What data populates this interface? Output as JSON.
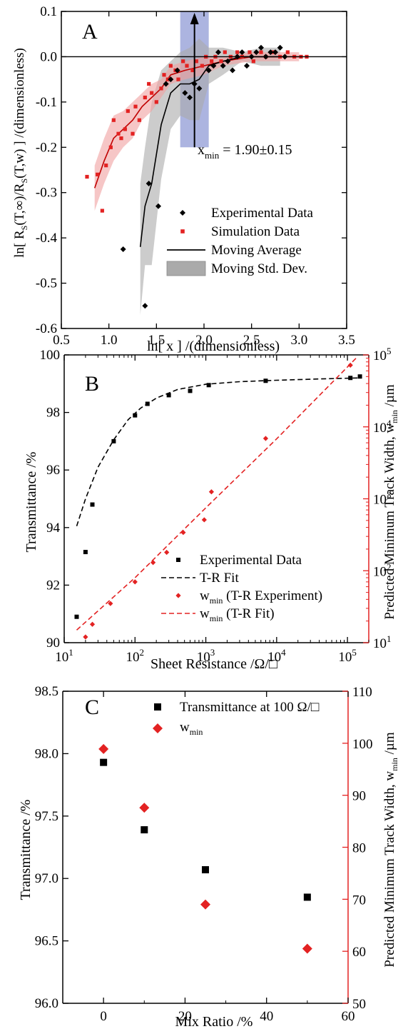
{
  "figure": {
    "panels": [
      "A",
      "B",
      "C"
    ]
  },
  "chart_data": [
    {
      "panel": "A",
      "type": "scatter",
      "xlabel": "ln[ x ] /(dimensionless)",
      "ylabel": "ln[ R_S(T,∞)/R_S(T,w) ] /(dimensionless)",
      "xlim": [
        0.5,
        3.5
      ],
      "ylim": [
        -0.6,
        0.1
      ],
      "xticks": [
        "0.5",
        "1.0",
        "1.5",
        "2.0",
        "2.5",
        "3.0",
        "3.5"
      ],
      "yticks": [
        "-0.6",
        "-0.5",
        "-0.4",
        "-0.3",
        "-0.2",
        "-0.1",
        "0.0",
        "0.1"
      ],
      "annotation": {
        "text": "x_min = 1.90±0.15",
        "xmin_value": 1.9,
        "xmin_uncertainty": 0.15,
        "band_ylim": [
          -0.2,
          0.1
        ]
      },
      "colors": {
        "experimental": "#000000",
        "simulation": "#e32222",
        "band_gray": "#aaaaaa",
        "band_red": "#f0a0a0",
        "xmin_band": "#7f8ccf"
      },
      "legend": [
        "Experimental Data",
        "Simulation Data",
        "Moving Average",
        "Moving Std. Dev."
      ],
      "series": [
        {
          "name": "Experimental Data",
          "marker": "diamond",
          "x": [
            1.15,
            1.38,
            1.42,
            1.52,
            1.6,
            1.65,
            1.72,
            1.8,
            1.85,
            1.9,
            1.95,
            2.05,
            2.1,
            2.15,
            2.2,
            2.25,
            2.3,
            2.35,
            2.4,
            2.45,
            2.5,
            2.55,
            2.6,
            2.65,
            2.7,
            2.75,
            2.8,
            2.85
          ],
          "y": [
            -0.425,
            -0.55,
            -0.28,
            -0.33,
            -0.06,
            -0.05,
            -0.03,
            -0.08,
            -0.09,
            -0.06,
            -0.07,
            -0.03,
            -0.02,
            0.01,
            -0.02,
            -0.01,
            -0.03,
            0.0,
            0.01,
            -0.02,
            0.0,
            0.01,
            0.02,
            0.0,
            0.01,
            0.01,
            0.02,
            0.0
          ]
        },
        {
          "name": "Simulation Data",
          "marker": "square",
          "x": [
            0.77,
            0.88,
            0.93,
            0.97,
            1.02,
            1.05,
            1.1,
            1.13,
            1.17,
            1.2,
            1.25,
            1.28,
            1.32,
            1.38,
            1.42,
            1.45,
            1.5,
            1.55,
            1.58,
            1.62,
            1.65,
            1.7,
            1.73,
            1.78,
            1.82,
            1.88,
            1.92,
            1.98,
            2.02,
            2.08,
            2.12,
            2.18,
            2.22,
            2.28,
            2.35,
            2.4,
            2.48,
            2.52,
            2.6,
            2.65,
            2.72,
            2.8,
            2.88,
            2.95,
            3.02,
            3.08
          ],
          "y": [
            -0.265,
            -0.26,
            -0.34,
            -0.24,
            -0.2,
            -0.14,
            -0.17,
            -0.18,
            -0.16,
            -0.12,
            -0.17,
            -0.11,
            -0.14,
            -0.09,
            -0.06,
            -0.08,
            -0.1,
            -0.07,
            -0.04,
            -0.05,
            -0.02,
            -0.03,
            -0.05,
            -0.01,
            -0.02,
            -0.03,
            -0.01,
            -0.02,
            0.0,
            -0.01,
            0.0,
            -0.01,
            0.01,
            0.0,
            0.01,
            0.0,
            0.01,
            -0.01,
            0.01,
            0.0,
            0.01,
            0.0,
            0.01,
            0.0,
            0.0,
            0.0
          ]
        },
        {
          "name": "Moving Average (Experimental)",
          "line": "solid",
          "color": "#000000",
          "x": [
            1.33,
            1.38,
            1.45,
            1.55,
            1.65,
            1.75,
            1.85,
            1.95,
            2.05,
            2.2,
            2.4,
            2.6,
            2.8
          ],
          "y": [
            -0.42,
            -0.33,
            -0.28,
            -0.15,
            -0.08,
            -0.06,
            -0.06,
            -0.05,
            -0.02,
            -0.01,
            0.0,
            0.0,
            0.0
          ]
        },
        {
          "name": "Moving Average (Simulation)",
          "line": "solid",
          "color": "#c00000",
          "x": [
            0.85,
            0.95,
            1.05,
            1.15,
            1.25,
            1.35,
            1.45,
            1.55,
            1.65,
            1.8,
            2.0,
            2.2,
            2.5,
            2.8,
            3.0
          ],
          "y": [
            -0.29,
            -0.23,
            -0.18,
            -0.16,
            -0.14,
            -0.11,
            -0.09,
            -0.07,
            -0.04,
            -0.03,
            -0.02,
            -0.01,
            0.0,
            0.0,
            0.0
          ]
        },
        {
          "name": "Moving Std. Dev. (Experimental)",
          "band": true,
          "x": [
            1.33,
            1.38,
            1.45,
            1.55,
            1.65,
            1.75,
            1.85,
            1.95,
            2.05,
            2.2,
            2.4,
            2.6,
            2.8
          ],
          "upper": [
            -0.28,
            -0.2,
            -0.1,
            -0.03,
            -0.01,
            0.01,
            0.02,
            0.04,
            0.02,
            0.02,
            0.01,
            0.02,
            0.02
          ],
          "lower": [
            -0.57,
            -0.46,
            -0.46,
            -0.27,
            -0.16,
            -0.13,
            -0.14,
            -0.14,
            -0.06,
            -0.04,
            -0.01,
            -0.02,
            -0.02
          ]
        },
        {
          "name": "Moving Std. Dev. (Simulation)",
          "band": true,
          "x": [
            0.85,
            0.95,
            1.05,
            1.15,
            1.25,
            1.35,
            1.45,
            1.55,
            1.65,
            1.8,
            2.0,
            2.2,
            2.5,
            2.8,
            3.0
          ],
          "upper": [
            -0.24,
            -0.18,
            -0.13,
            -0.12,
            -0.1,
            -0.08,
            -0.06,
            -0.05,
            -0.02,
            -0.01,
            0.0,
            0.0,
            0.01,
            0.01,
            0.01
          ],
          "lower": [
            -0.34,
            -0.28,
            -0.23,
            -0.2,
            -0.18,
            -0.14,
            -0.12,
            -0.09,
            -0.06,
            -0.05,
            -0.04,
            -0.02,
            -0.01,
            -0.01,
            -0.01
          ]
        }
      ]
    },
    {
      "panel": "B",
      "type": "scatter",
      "xlabel": "Sheet Resistance /Ω/□",
      "ylabel": "Transmittance /%",
      "ylabel_right": "Predicted Minimum Track Width, w_min /µm",
      "xscale": "log",
      "yscale_right": "log",
      "xlim": [
        10,
        200000
      ],
      "ylim": [
        90,
        100
      ],
      "ylim_right": [
        10,
        100000
      ],
      "xticks": [
        "10^1",
        "10^2",
        "10^3",
        "10^4",
        "10^5"
      ],
      "yticks": [
        "90",
        "92",
        "94",
        "96",
        "98",
        "100"
      ],
      "yticks_right": [
        "10^1",
        "10^2",
        "10^3",
        "10^4",
        "10^5"
      ],
      "legend": [
        "Experimental Data",
        "T-R Fit",
        "w_min (T-R Experiment)",
        "w_min (T-R Fit)"
      ],
      "series": [
        {
          "name": "Experimental Data",
          "axis": "left",
          "marker": "square",
          "color": "#000000",
          "x": [
            15,
            20,
            25,
            50,
            100,
            150,
            300,
            600,
            1100,
            7000,
            110000,
            150000
          ],
          "y": [
            90.9,
            93.15,
            94.8,
            97.0,
            97.9,
            98.3,
            98.6,
            98.75,
            98.95,
            99.1,
            99.2,
            99.25
          ]
        },
        {
          "name": "T-R Fit",
          "axis": "left",
          "line": "dashed",
          "color": "#000000",
          "x": [
            15,
            20,
            30,
            50,
            80,
            120,
            200,
            400,
            1000,
            3000,
            10000,
            50000,
            150000
          ],
          "y": [
            94.05,
            95.0,
            96.1,
            97.05,
            97.75,
            98.15,
            98.5,
            98.8,
            98.98,
            99.07,
            99.12,
            99.17,
            99.2
          ]
        },
        {
          "name": "w_min (T-R Experiment)",
          "axis": "right",
          "marker": "diamond",
          "color": "#e32222",
          "x": [
            20,
            25,
            45,
            100,
            180,
            280,
            480,
            950,
            1200,
            7000,
            110000
          ],
          "y": [
            12,
            18,
            35,
            70,
            130,
            180,
            340,
            510,
            1250,
            6900,
            72000
          ]
        },
        {
          "name": "w_min (T-R Fit)",
          "axis": "right",
          "line": "dashed",
          "color": "#e32222",
          "x": [
            15,
            100,
            1000,
            10000,
            100000,
            140000
          ],
          "y": [
            15,
            80,
            750,
            6800,
            68000,
            95000
          ]
        }
      ]
    },
    {
      "panel": "C",
      "type": "scatter",
      "xlabel": "Mix Ratio /%",
      "ylabel": "Transmittance /%",
      "ylabel_right": "Predicted Minimum Track Width, w_min /µm",
      "xlim": [
        -10,
        60
      ],
      "ylim": [
        96.0,
        98.5
      ],
      "ylim_right": [
        50,
        110
      ],
      "xticks": [
        "0",
        "20",
        "40",
        "60"
      ],
      "yticks": [
        "96.0",
        "96.5",
        "97.0",
        "97.5",
        "98.0",
        "98.5"
      ],
      "yticks_right": [
        "50",
        "60",
        "70",
        "80",
        "90",
        "100",
        "110"
      ],
      "legend": [
        "Transmittance at 100 Ω/□",
        "w_min"
      ],
      "series": [
        {
          "name": "Transmittance at 100 Ω/□",
          "axis": "left",
          "marker": "square",
          "color": "#000000",
          "x": [
            0,
            10,
            25,
            50
          ],
          "y": [
            97.93,
            97.39,
            97.07,
            96.85
          ]
        },
        {
          "name": "w_min",
          "axis": "right",
          "marker": "diamond",
          "color": "#e32222",
          "x": [
            0,
            10,
            25,
            50
          ],
          "y": [
            98.9,
            87.6,
            69.0,
            60.5
          ]
        }
      ]
    }
  ]
}
